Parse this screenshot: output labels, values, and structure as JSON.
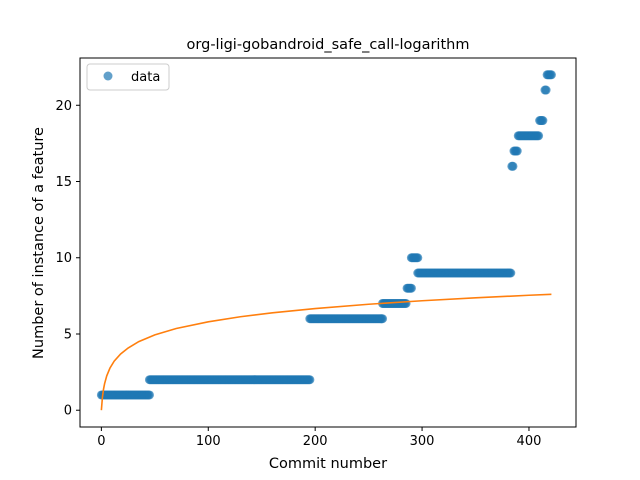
{
  "chart_data": {
    "type": "scatter",
    "title": "org-ligi-gobandroid_safe_call-logarithm",
    "xlabel": "Commit number",
    "ylabel": "Number of instance of a feature",
    "xlim": [
      -20,
      444
    ],
    "ylim": [
      -1.1,
      23.1
    ],
    "xticks": [
      0,
      100,
      200,
      300,
      400
    ],
    "yticks": [
      0,
      5,
      10,
      15,
      20
    ],
    "grid": false,
    "legend": {
      "placement": "top-left",
      "entries": [
        "data"
      ]
    },
    "colors": {
      "data": "#1f77b4",
      "fit": "#ff7f0e"
    },
    "series": [
      {
        "name": "data",
        "kind": "scatter",
        "segments": [
          {
            "x_start": 0,
            "x_end": 45,
            "y": 1
          },
          {
            "x_start": 45,
            "x_end": 195,
            "y": 2
          },
          {
            "x_start": 195,
            "x_end": 263,
            "y": 6
          },
          {
            "x_start": 263,
            "x_end": 285,
            "y": 7
          },
          {
            "x_start": 286,
            "x_end": 290,
            "y": 8
          },
          {
            "x_start": 290,
            "x_end": 296,
            "y": 10
          },
          {
            "x_start": 296,
            "x_end": 383,
            "y": 9
          },
          {
            "x_start": 384,
            "x_end": 385,
            "y": 16
          },
          {
            "x_start": 386,
            "x_end": 389,
            "y": 17
          },
          {
            "x_start": 390,
            "x_end": 409,
            "y": 18
          },
          {
            "x_start": 410,
            "x_end": 413,
            "y": 19
          },
          {
            "x_start": 415,
            "x_end": 416,
            "y": 21
          },
          {
            "x_start": 417,
            "x_end": 421,
            "y": 22
          }
        ]
      },
      {
        "kind": "line",
        "points": [
          [
            0,
            0
          ],
          [
            1,
            0.87
          ],
          [
            2,
            1.38
          ],
          [
            3,
            1.74
          ],
          [
            5,
            2.25
          ],
          [
            8,
            2.76
          ],
          [
            12,
            3.22
          ],
          [
            18,
            3.69
          ],
          [
            25,
            4.08
          ],
          [
            35,
            4.5
          ],
          [
            50,
            4.94
          ],
          [
            70,
            5.36
          ],
          [
            100,
            5.8
          ],
          [
            130,
            6.13
          ],
          [
            160,
            6.39
          ],
          [
            200,
            6.67
          ],
          [
            250,
            6.95
          ],
          [
            300,
            7.18
          ],
          [
            350,
            7.37
          ],
          [
            400,
            7.54
          ],
          [
            421,
            7.6
          ]
        ]
      }
    ]
  }
}
